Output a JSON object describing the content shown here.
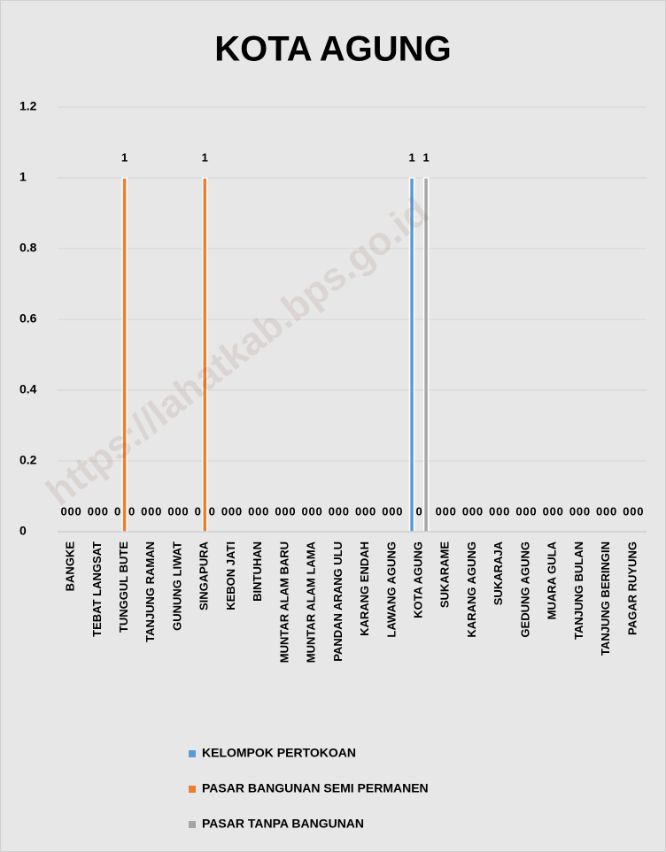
{
  "chart_data": {
    "type": "bar",
    "title": "KOTA AGUNG",
    "watermark": "https://lahatkab.bps.go.id",
    "categories": [
      "BANGKE",
      "TEBAT LANGSAT",
      "TUNGGUL BUTE",
      "TANJUNG RAMAN",
      "GUNUNG LIWAT",
      "SINGAPURA",
      "KEBON JATI",
      "BINTUHAN",
      "MUNTAR ALAM BARU",
      "MUNTAR ALAM LAMA",
      "PANDAN ARANG ULU",
      "KARANG ENDAH",
      "LAWANG AGUNG",
      "KOTA AGUNG",
      "SUKARAME",
      "KARANG AGUNG",
      "SUKARAJA",
      "GEDUNG AGUNG",
      "MUARA GULA",
      "TANJUNG BULAN",
      "TANJUNG BERINGIN",
      "PAGAR RUYUNG"
    ],
    "series": [
      {
        "name": "KELOMPOK PERTOKOAN",
        "color": "#5b9bd5",
        "values": [
          0,
          0,
          0,
          0,
          0,
          0,
          0,
          0,
          0,
          0,
          0,
          0,
          0,
          1,
          0,
          0,
          0,
          0,
          0,
          0,
          0,
          0
        ]
      },
      {
        "name": "PASAR BANGUNAN SEMI PERMANEN",
        "color": "#ed7d31",
        "values": [
          0,
          0,
          1,
          0,
          0,
          1,
          0,
          0,
          0,
          0,
          0,
          0,
          0,
          0,
          0,
          0,
          0,
          0,
          0,
          0,
          0,
          0
        ]
      },
      {
        "name": "PASAR TANPA BANGUNAN",
        "color": "#a5a5a5",
        "values": [
          0,
          0,
          0,
          0,
          0,
          0,
          0,
          0,
          0,
          0,
          0,
          0,
          0,
          1,
          0,
          0,
          0,
          0,
          0,
          0,
          0,
          0
        ]
      }
    ],
    "ylim": [
      0,
      1.2
    ],
    "yticks": [
      0,
      0.2,
      0.4,
      0.6,
      0.8,
      1,
      1.2
    ],
    "grid": true
  }
}
